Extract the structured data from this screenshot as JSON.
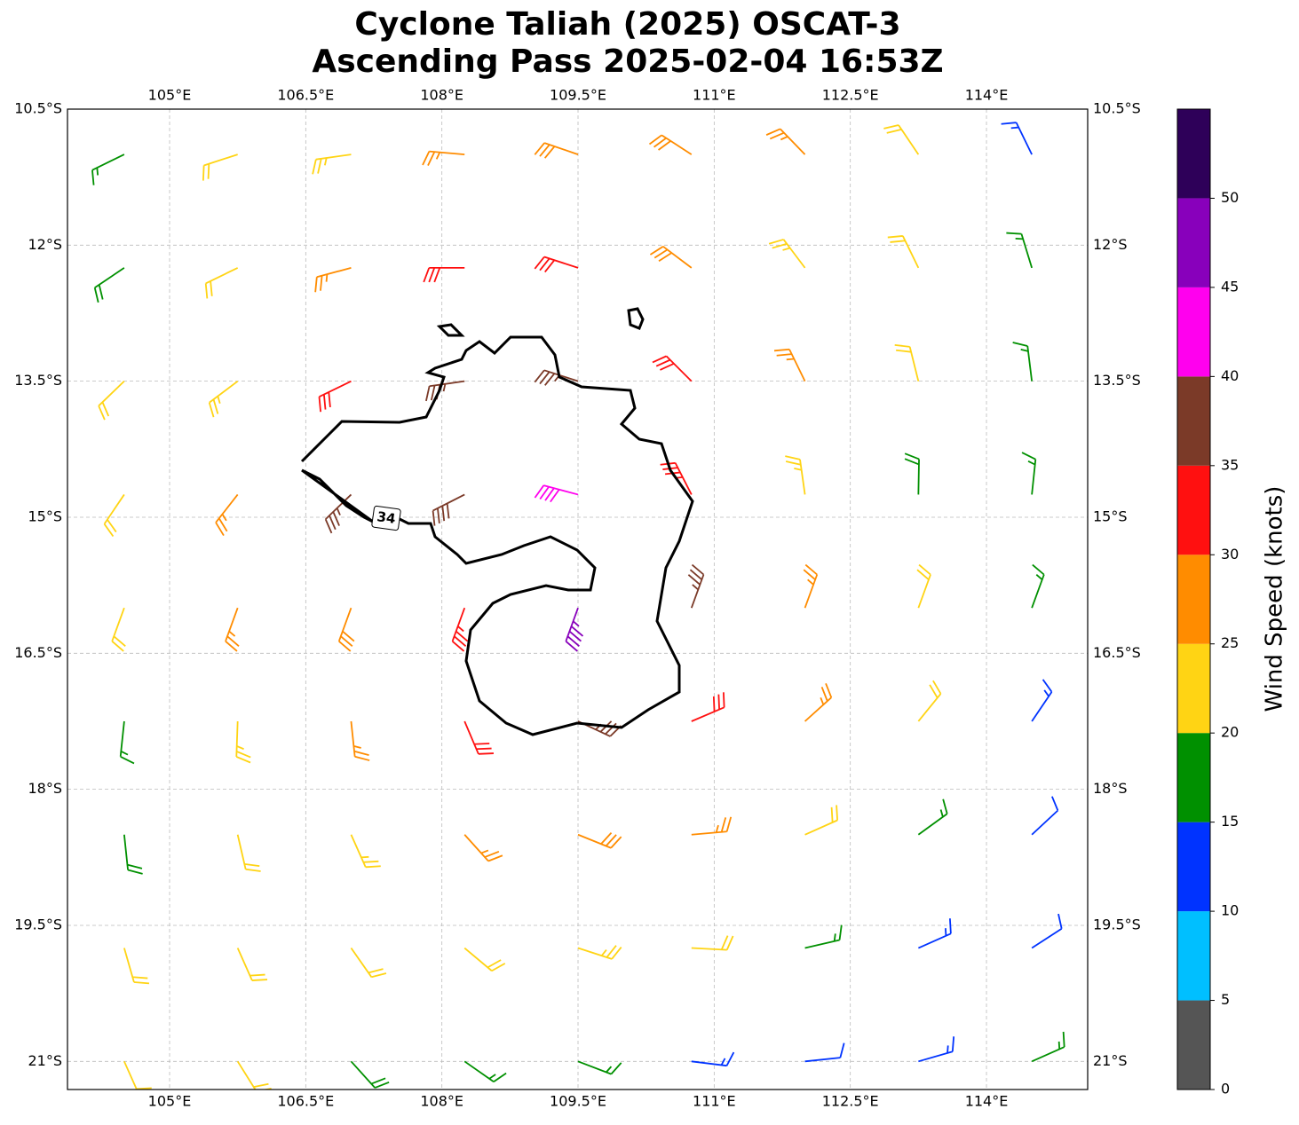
{
  "chart_data": {
    "type": "barbs",
    "title": [
      "Cyclone Taliah (2025) OSCAT-3",
      "Ascending Pass 2025-02-04 16:53Z"
    ],
    "xlim": [
      103.875,
      115.115
    ],
    "ylim": [
      -21.31,
      -10.5
    ],
    "xticks": [
      {
        "value": 105,
        "label": "105°E"
      },
      {
        "value": 106.5,
        "label": "106.5°E"
      },
      {
        "value": 108,
        "label": "108°E"
      },
      {
        "value": 109.5,
        "label": "109.5°E"
      },
      {
        "value": 111,
        "label": "111°E"
      },
      {
        "value": 112.5,
        "label": "112.5°E"
      },
      {
        "value": 114,
        "label": "114°E"
      }
    ],
    "yticks": [
      {
        "value": -10.5,
        "label": "10.5°S"
      },
      {
        "value": -12,
        "label": "12°S"
      },
      {
        "value": -13.5,
        "label": "13.5°S"
      },
      {
        "value": -15,
        "label": "15°S"
      },
      {
        "value": -16.5,
        "label": "16.5°S"
      },
      {
        "value": -18,
        "label": "18°S"
      },
      {
        "value": -19.5,
        "label": "19.5°S"
      },
      {
        "value": -21,
        "label": "21°S"
      }
    ],
    "grid": true,
    "lon": [
      104.5,
      105.75,
      107,
      108.25,
      109.5,
      110.75,
      112,
      113.25,
      114.5
    ],
    "lat": [
      -11,
      -12.25,
      -13.5,
      -14.75,
      -16,
      -17.25,
      -18.5,
      -19.75,
      -21
    ],
    "speed": [
      [
        17,
        22,
        24,
        27,
        28,
        29,
        25,
        22,
        13
      ],
      [
        18,
        22,
        27,
        32,
        30,
        28,
        24,
        22,
        17
      ],
      [
        22,
        24,
        30,
        37,
        37,
        32,
        25,
        20,
        17
      ],
      [
        22,
        27,
        36,
        38,
        42,
        33,
        24,
        19,
        15
      ],
      [
        20,
        25,
        29,
        33,
        47,
        36,
        27,
        22,
        15
      ],
      [
        17,
        23,
        26,
        31,
        37,
        31,
        25,
        20,
        13
      ],
      [
        18,
        22,
        23,
        25,
        28,
        26,
        22,
        17,
        12
      ],
      [
        20,
        22,
        22,
        21,
        23,
        22,
        17,
        14,
        12
      ],
      [
        22,
        22,
        18,
        17,
        17,
        14,
        12,
        14,
        15
      ]
    ],
    "direction": [
      [
        64,
        72,
        82,
        95,
        109,
        123,
        136,
        146,
        154
      ],
      [
        56,
        64,
        75,
        90,
        108,
        127,
        143,
        154,
        163
      ],
      [
        46,
        53,
        64,
        82,
        108,
        135,
        154,
        166,
        173
      ],
      [
        34,
        38,
        46,
        63,
        105,
        153,
        172,
        181,
        186
      ],
      [
        20,
        20,
        20,
        20,
        20,
        200,
        200,
        200,
        200
      ],
      [
        6,
        2,
        354,
        337,
        295,
        247,
        228,
        219,
        214
      ],
      [
        354,
        347,
        336,
        318,
        292,
        265,
        246,
        234,
        227
      ],
      [
        344,
        336,
        325,
        310,
        288,
        273,
        257,
        246,
        237
      ],
      [
        336,
        328,
        318,
        305,
        291,
        277,
        264,
        254,
        246
      ]
    ],
    "contour_level": 34,
    "colorbar": {
      "label": "Wind Speed (knots)",
      "bounds": [
        0,
        5,
        10,
        15,
        20,
        25,
        30,
        35,
        40,
        45,
        50,
        55
      ],
      "colors": [
        "#555555",
        "#00bfff",
        "#0033ff",
        "#009000",
        "#ffd414",
        "#ff8c00",
        "#ff1010",
        "#7b3a28",
        "#ff00ee",
        "#8800bb",
        "#2e0059"
      ],
      "ticks": [
        0,
        5,
        10,
        15,
        20,
        25,
        30,
        35,
        40,
        45,
        50
      ]
    }
  }
}
